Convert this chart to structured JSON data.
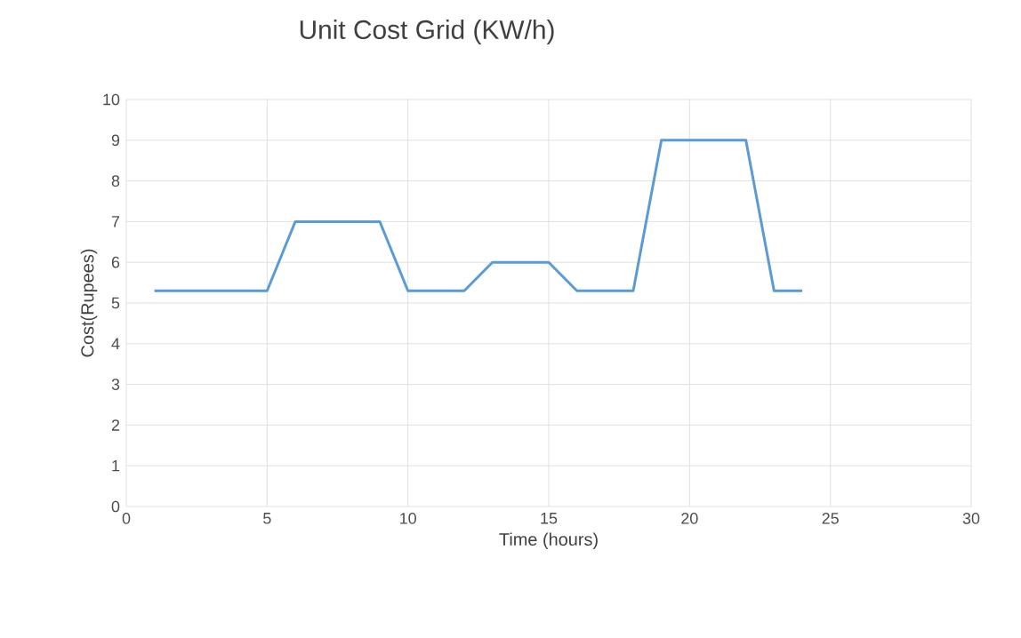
{
  "chart_data": {
    "type": "line",
    "title": "Unit Cost Grid (KW/h)",
    "xlabel": "Time (hours)",
    "ylabel": "Cost(Rupees)",
    "x": [
      1,
      2,
      3,
      4,
      5,
      6,
      7,
      8,
      9,
      10,
      11,
      12,
      13,
      14,
      15,
      16,
      17,
      18,
      19,
      20,
      21,
      22,
      23,
      24
    ],
    "series": [
      {
        "color": "#5b9bd5",
        "values": [
          5.3,
          5.3,
          5.3,
          5.3,
          5.3,
          7,
          7,
          7,
          7,
          5.3,
          5.3,
          5.3,
          6,
          6,
          6,
          5.3,
          5.3,
          5.3,
          9,
          9,
          9,
          9,
          5.3,
          5.3
        ]
      }
    ],
    "xlim": [
      0,
      30
    ],
    "xticks": [
      0,
      5,
      10,
      15,
      20,
      25,
      30
    ],
    "ylim": [
      0,
      10
    ],
    "yticks": [
      0,
      1,
      2,
      3,
      4,
      5,
      6,
      7,
      8,
      9,
      10
    ],
    "grid": true,
    "marker": "none",
    "line_style": "solid"
  }
}
